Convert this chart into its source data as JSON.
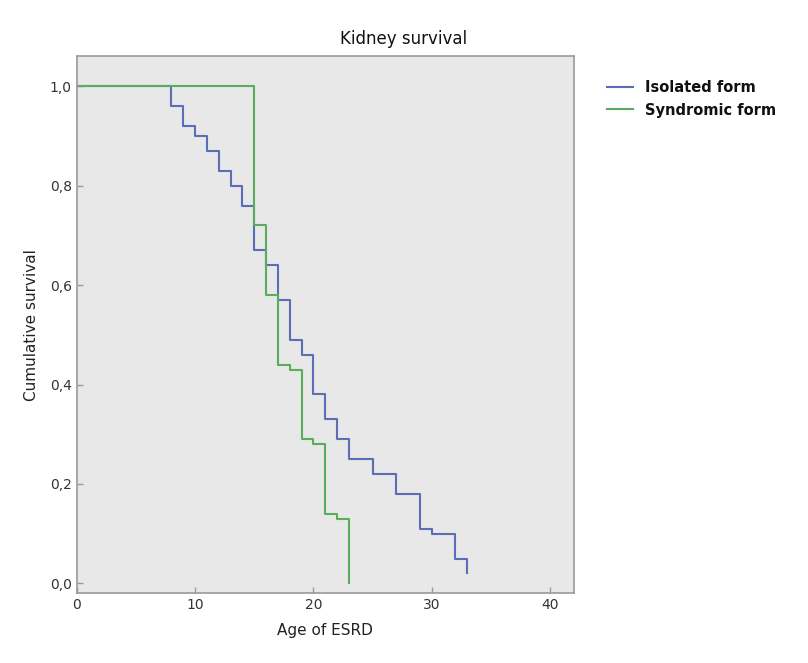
{
  "title": "Kidney survival",
  "xlabel": "Age of ESRD",
  "ylabel": "Cumulative survival",
  "xlim": [
    0,
    42
  ],
  "ylim": [
    -0.02,
    1.06
  ],
  "xticks": [
    0,
    10,
    20,
    30,
    40
  ],
  "yticks": [
    0.0,
    0.2,
    0.4,
    0.6,
    0.8,
    1.0
  ],
  "ytick_labels": [
    "0,0",
    "0,2",
    "0,4",
    "0,6",
    "0,8",
    "1,0"
  ],
  "plot_bg_color": "#e8e8e8",
  "outer_bg_color": "#ffffff",
  "isolated_color": "#5b6eb5",
  "syndromic_color": "#5aad5a",
  "legend_labels": [
    "Isolated form",
    "Syndromic form"
  ],
  "isolated_x": [
    0,
    7,
    8,
    9,
    10,
    11,
    12,
    13,
    14,
    15,
    16,
    17,
    18,
    19,
    20,
    21,
    22,
    23,
    25,
    27,
    29,
    30,
    32,
    33
  ],
  "isolated_y": [
    1.0,
    1.0,
    0.96,
    0.92,
    0.9,
    0.87,
    0.83,
    0.8,
    0.76,
    0.67,
    0.64,
    0.57,
    0.49,
    0.46,
    0.38,
    0.33,
    0.29,
    0.25,
    0.22,
    0.18,
    0.11,
    0.1,
    0.05,
    0.02
  ],
  "syndromic_x": [
    0,
    13,
    15,
    16,
    17,
    18,
    19,
    20,
    21,
    22,
    23
  ],
  "syndromic_y": [
    1.0,
    1.0,
    0.72,
    0.58,
    0.44,
    0.43,
    0.29,
    0.28,
    0.14,
    0.13,
    0.0
  ]
}
